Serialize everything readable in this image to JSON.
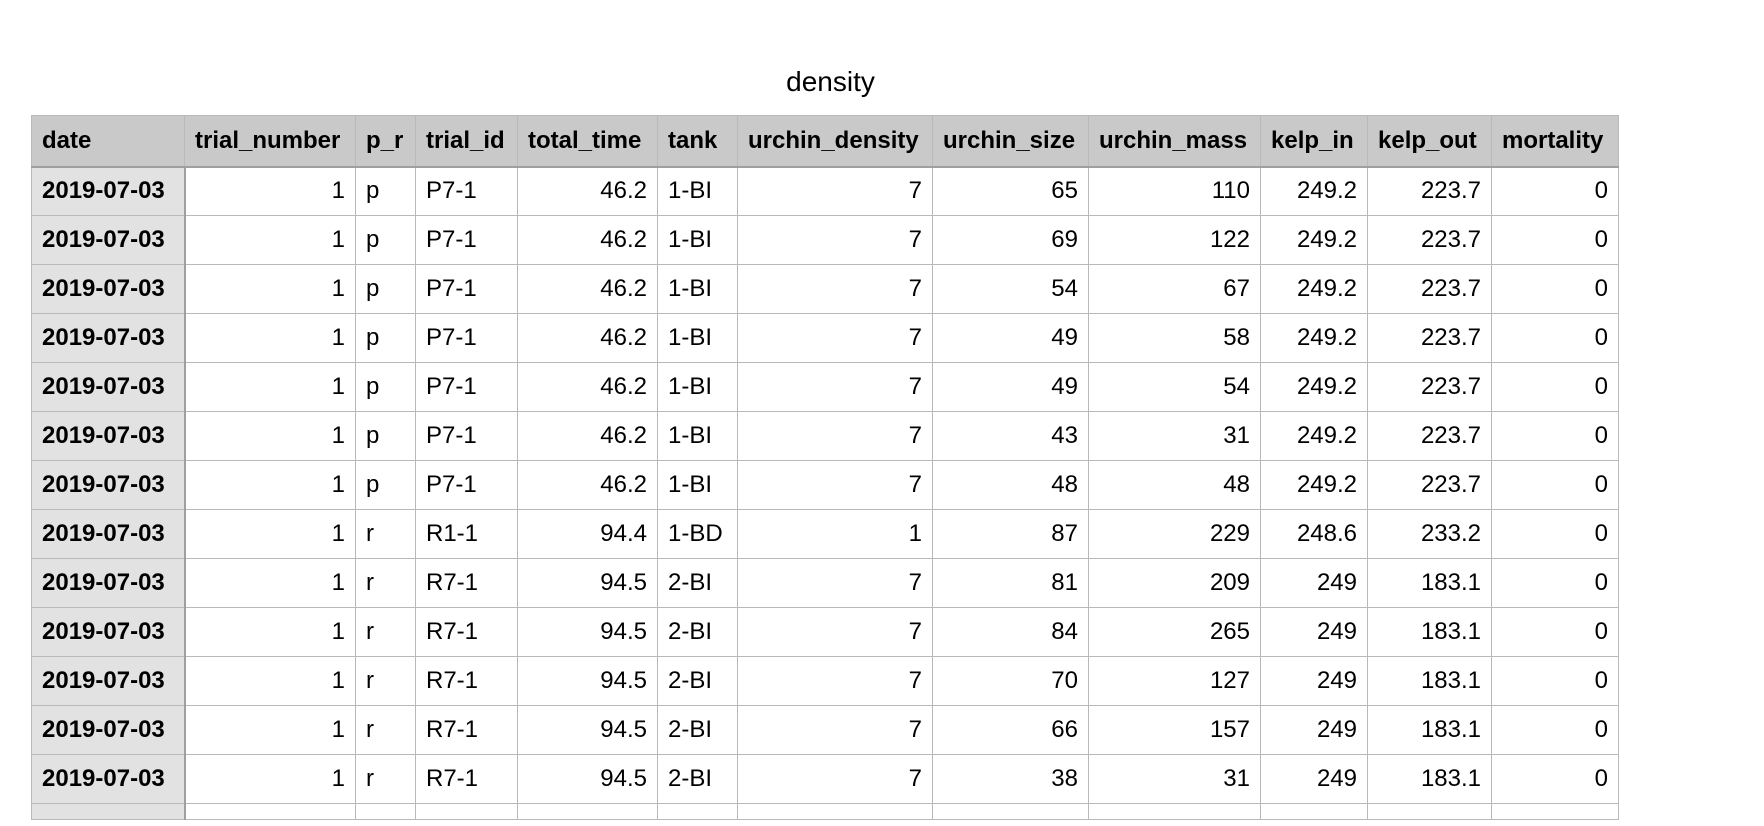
{
  "sheet": {
    "title": "density"
  },
  "table": {
    "columns": [
      {
        "label": "date",
        "align": "txt"
      },
      {
        "label": "trial_number",
        "align": "num"
      },
      {
        "label": "p_r",
        "align": "txt"
      },
      {
        "label": "trial_id",
        "align": "txt"
      },
      {
        "label": "total_time",
        "align": "num"
      },
      {
        "label": "tank",
        "align": "txt"
      },
      {
        "label": "urchin_density",
        "align": "num"
      },
      {
        "label": "urchin_size",
        "align": "num"
      },
      {
        "label": "urchin_mass",
        "align": "num"
      },
      {
        "label": "kelp_in",
        "align": "num"
      },
      {
        "label": "kelp_out",
        "align": "num"
      },
      {
        "label": "mortality",
        "align": "num"
      }
    ],
    "rows": [
      [
        "2019-07-03",
        "1",
        "p",
        "P7-1",
        "46.2",
        "1-BI",
        "7",
        "65",
        "110",
        "249.2",
        "223.7",
        "0"
      ],
      [
        "2019-07-03",
        "1",
        "p",
        "P7-1",
        "46.2",
        "1-BI",
        "7",
        "69",
        "122",
        "249.2",
        "223.7",
        "0"
      ],
      [
        "2019-07-03",
        "1",
        "p",
        "P7-1",
        "46.2",
        "1-BI",
        "7",
        "54",
        "67",
        "249.2",
        "223.7",
        "0"
      ],
      [
        "2019-07-03",
        "1",
        "p",
        "P7-1",
        "46.2",
        "1-BI",
        "7",
        "49",
        "58",
        "249.2",
        "223.7",
        "0"
      ],
      [
        "2019-07-03",
        "1",
        "p",
        "P7-1",
        "46.2",
        "1-BI",
        "7",
        "49",
        "54",
        "249.2",
        "223.7",
        "0"
      ],
      [
        "2019-07-03",
        "1",
        "p",
        "P7-1",
        "46.2",
        "1-BI",
        "7",
        "43",
        "31",
        "249.2",
        "223.7",
        "0"
      ],
      [
        "2019-07-03",
        "1",
        "p",
        "P7-1",
        "46.2",
        "1-BI",
        "7",
        "48",
        "48",
        "249.2",
        "223.7",
        "0"
      ],
      [
        "2019-07-03",
        "1",
        "r",
        "R1-1",
        "94.4",
        "1-BD",
        "1",
        "87",
        "229",
        "248.6",
        "233.2",
        "0"
      ],
      [
        "2019-07-03",
        "1",
        "r",
        "R7-1",
        "94.5",
        "2-BI",
        "7",
        "81",
        "209",
        "249",
        "183.1",
        "0"
      ],
      [
        "2019-07-03",
        "1",
        "r",
        "R7-1",
        "94.5",
        "2-BI",
        "7",
        "84",
        "265",
        "249",
        "183.1",
        "0"
      ],
      [
        "2019-07-03",
        "1",
        "r",
        "R7-1",
        "94.5",
        "2-BI",
        "7",
        "70",
        "127",
        "249",
        "183.1",
        "0"
      ],
      [
        "2019-07-03",
        "1",
        "r",
        "R7-1",
        "94.5",
        "2-BI",
        "7",
        "66",
        "157",
        "249",
        "183.1",
        "0"
      ],
      [
        "2019-07-03",
        "1",
        "r",
        "R7-1",
        "94.5",
        "2-BI",
        "7",
        "38",
        "31",
        "249",
        "183.1",
        "0"
      ]
    ]
  }
}
